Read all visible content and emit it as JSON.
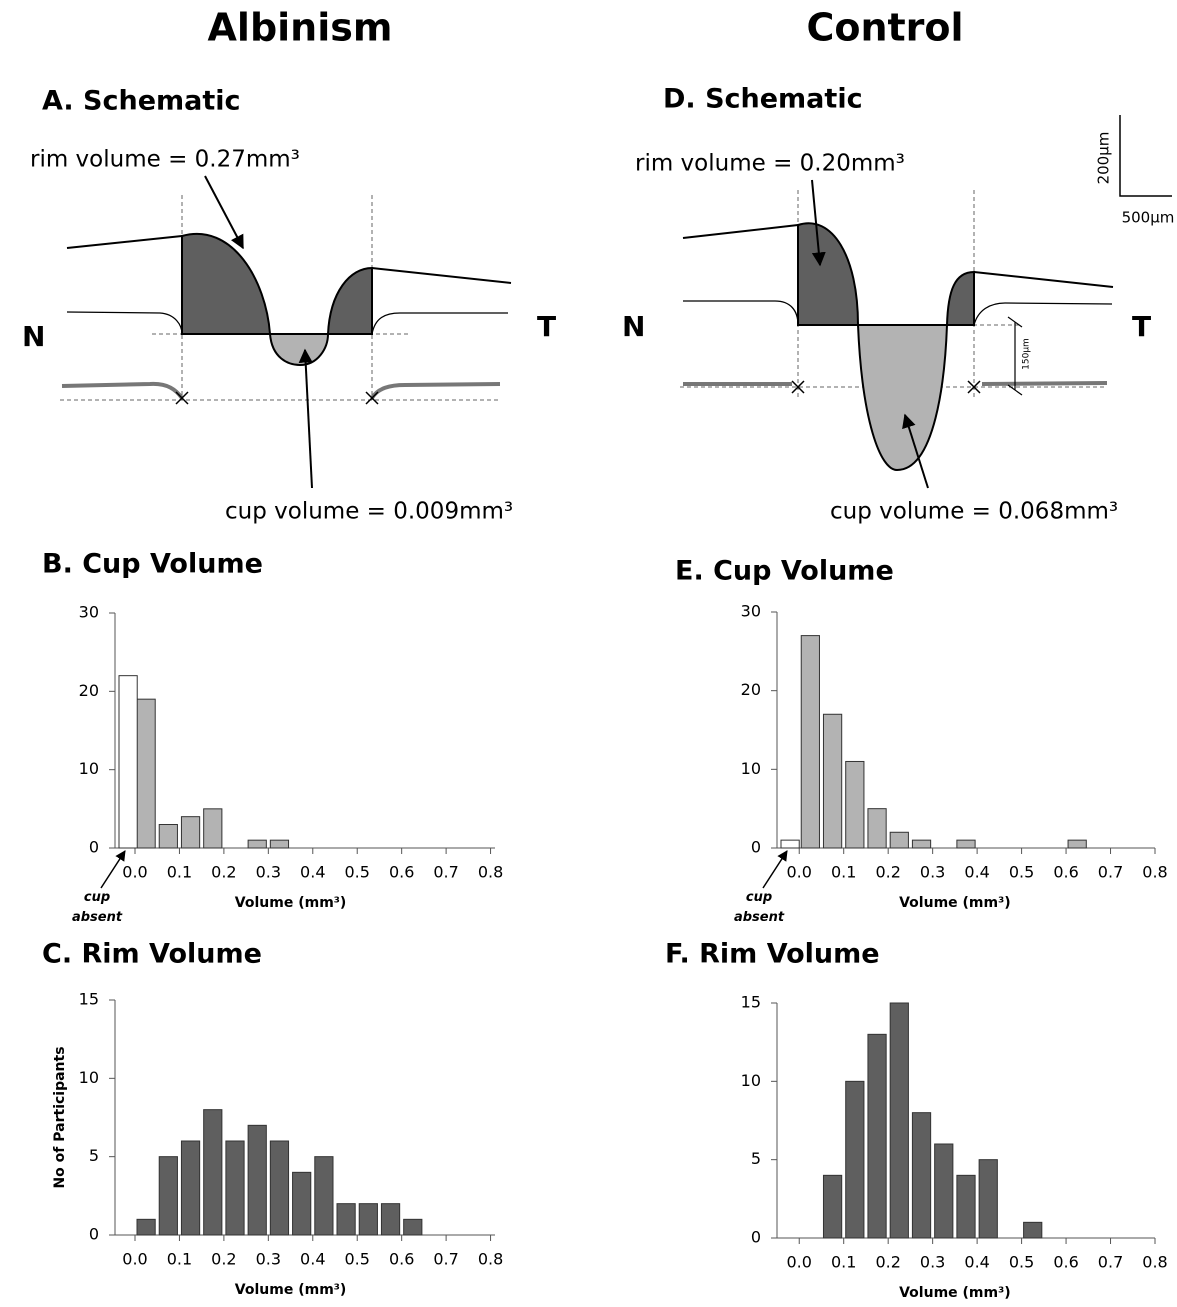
{
  "headings": [
    "Albinism",
    "Control"
  ],
  "schematics": [
    {
      "title": "A. Schematic",
      "rim_label": "rim volume = 0.27mm³",
      "cup_label": "cup volume = 0.009mm³",
      "nasal": "N",
      "temporal": "T"
    },
    {
      "title": "D. Schematic",
      "rim_label": "rim volume = 0.20mm³",
      "cup_label": "cup volume = 0.068mm³",
      "nasal": "N",
      "temporal": "T"
    }
  ],
  "scale": {
    "vertical": "200µm",
    "horizontal": "500µm",
    "depth": "150µm"
  },
  "chart_data": [
    {
      "type": "histogram",
      "title": "B. Cup Volume",
      "xlabel": "Volume (mm³)",
      "color": "#b3b3b3",
      "bins": [
        0,
        0.05,
        0.1,
        0.15,
        0.2,
        0.25,
        0.3,
        0.35
      ],
      "counts": [
        19,
        3,
        4,
        5,
        0,
        1,
        1
      ],
      "absent": {
        "label": "cup absent",
        "value": 22,
        "color": "#ffffff"
      },
      "xlim": [
        -0.045,
        0.81
      ],
      "xticks": [
        {
          "value": 0,
          "label": "0.0"
        },
        0.1,
        0.2,
        0.3,
        0.4,
        0.5,
        0.6,
        0.7,
        0.8
      ],
      "ylim": [
        0,
        30
      ],
      "yticks": [
        0,
        10,
        20,
        30
      ]
    },
    {
      "type": "histogram",
      "title": "C. Rim Volume",
      "xlabel": "Volume (mm³)",
      "ylabel": "No of Participants",
      "color": "#5f5f5f",
      "bins": [
        0,
        0.05,
        0.1,
        0.15,
        0.2,
        0.25,
        0.3,
        0.35,
        0.4,
        0.45,
        0.5,
        0.55,
        0.6,
        0.65
      ],
      "counts": [
        1,
        5,
        6,
        8,
        6,
        7,
        6,
        4,
        5,
        2,
        2,
        2,
        1
      ],
      "xlim": [
        -0.045,
        0.81
      ],
      "xticks": [
        {
          "value": 0,
          "label": "0.0"
        },
        0.1,
        0.2,
        0.3,
        0.4,
        0.5,
        0.6,
        0.7,
        0.8
      ],
      "ylim": [
        0,
        15
      ],
      "yticks": [
        0,
        5,
        10,
        15
      ]
    },
    {
      "type": "histogram",
      "title": "E. Cup Volume",
      "xlabel": "Volume (mm³)",
      "color": "#b3b3b3",
      "bins": [
        0,
        0.05,
        0.1,
        0.15,
        0.2,
        0.25,
        0.3,
        0.35,
        0.4,
        0.45,
        0.5,
        0.55,
        0.6,
        0.65
      ],
      "counts": [
        27,
        17,
        11,
        5,
        2,
        1,
        0,
        1,
        0,
        0,
        0,
        0,
        1
      ],
      "absent": {
        "label": "cup absent",
        "value": 1,
        "color": "#ffffff"
      },
      "xlim": [
        -0.05,
        0.8
      ],
      "xticks": [
        {
          "value": 0,
          "label": "0.0"
        },
        0.1,
        0.2,
        0.3,
        0.4,
        0.5,
        0.6,
        0.7,
        0.8
      ],
      "ylim": [
        0,
        30
      ],
      "yticks": [
        0,
        10,
        20,
        30
      ]
    },
    {
      "type": "histogram",
      "title": "F. Rim Volume",
      "xlabel": "Volume (mm³)",
      "color": "#5f5f5f",
      "bins": [
        0.05,
        0.1,
        0.15,
        0.2,
        0.25,
        0.3,
        0.35,
        0.4,
        0.45,
        0.5,
        0.55
      ],
      "counts": [
        4,
        10,
        13,
        15,
        8,
        6,
        4,
        5,
        0,
        1
      ],
      "xlim": [
        -0.05,
        0.8
      ],
      "xticks": [
        {
          "value": 0,
          "label": "0.0"
        },
        0.1,
        0.2,
        0.3,
        0.4,
        0.5,
        0.6,
        0.7,
        0.8
      ],
      "ylim": [
        0,
        15
      ],
      "yticks": [
        0,
        5,
        10,
        15
      ]
    }
  ]
}
